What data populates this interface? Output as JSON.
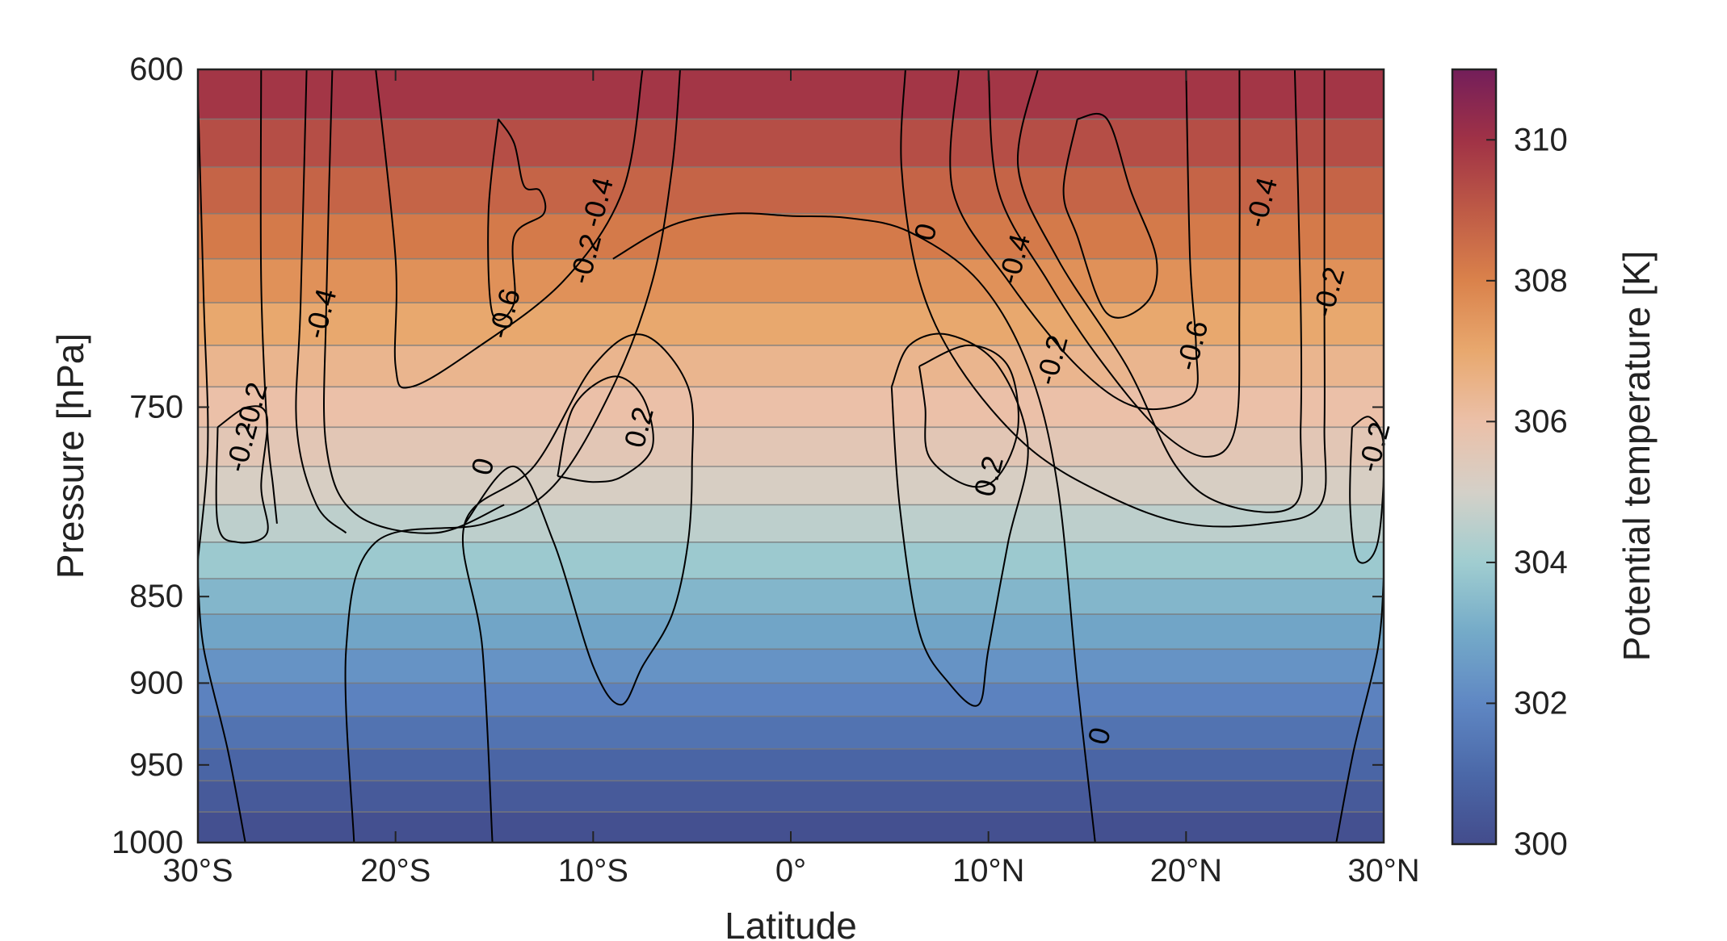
{
  "chart_data": {
    "type": "heatmap",
    "title": "",
    "xlabel": "Latitude",
    "ylabel": "Pressure [hPa]",
    "x_ticks": [
      "30°S",
      "20°S",
      "10°S",
      "0°",
      "10°N",
      "20°N",
      "30°N"
    ],
    "x_tick_values": [
      -30,
      -20,
      -10,
      0,
      10,
      20,
      30
    ],
    "y_ticks": [
      "600",
      "750",
      "850",
      "900",
      "950",
      "1000"
    ],
    "y_tick_values": [
      600,
      750,
      850,
      900,
      950,
      1000
    ],
    "xlim": [
      -30,
      30
    ],
    "ylim": [
      1000,
      600
    ],
    "y_reversed": true,
    "filled_field": {
      "name": "Potential temperature",
      "levels_pressure_hPa": [
        600,
        1000
      ],
      "surface_value_K": 300.0,
      "top_value_K": 310.3,
      "band_pressures_hPa": [
        600,
        620,
        640,
        660,
        680,
        700,
        720,
        740,
        760,
        780,
        800,
        820,
        840,
        860,
        880,
        900,
        920,
        940,
        960,
        980,
        1000
      ],
      "band_values_K": [
        310.2,
        309.6,
        309.0,
        308.5,
        307.9,
        307.3,
        306.7,
        306.2,
        305.8,
        305.4,
        304.9,
        304.2,
        303.6,
        303.1,
        302.6,
        302.1,
        301.6,
        301.1,
        300.7,
        300.3,
        300.0
      ]
    },
    "colorbar": {
      "label": "Potential temperature [K]",
      "ticks": [
        "300",
        "302",
        "304",
        "306",
        "308",
        "310"
      ],
      "tick_values": [
        300,
        302,
        304,
        306,
        308,
        310
      ],
      "range": [
        300,
        311
      ]
    },
    "contour_labels": [
      {
        "text": "-0.4",
        "lat": -23.8,
        "p": 705
      },
      {
        "text": "-0.2",
        "lat": -27.3,
        "p": 750
      },
      {
        "text": "-0.2",
        "lat": -27.8,
        "p": 770
      },
      {
        "text": "-0.6",
        "lat": -14.5,
        "p": 705
      },
      {
        "text": "-0.2",
        "lat": -10.4,
        "p": 680
      },
      {
        "text": "-0.4",
        "lat": -9.8,
        "p": 655
      },
      {
        "text": "0",
        "lat": -15.6,
        "p": 780
      },
      {
        "text": "0.2",
        "lat": -7.7,
        "p": 760
      },
      {
        "text": "0",
        "lat": 6.8,
        "p": 668
      },
      {
        "text": "-0.4",
        "lat": 11.3,
        "p": 680
      },
      {
        "text": "-0.2",
        "lat": 13.2,
        "p": 727
      },
      {
        "text": "0.2",
        "lat": 10.0,
        "p": 785
      },
      {
        "text": "-0.6",
        "lat": 20.3,
        "p": 720
      },
      {
        "text": "-0.4",
        "lat": 23.8,
        "p": 655
      },
      {
        "text": "-0.2",
        "lat": 27.2,
        "p": 695
      },
      {
        "text": "-0.2",
        "lat": 29.5,
        "p": 770
      },
      {
        "text": "0",
        "lat": 15.6,
        "p": 932
      }
    ],
    "contours": {
      "units": "lat_deg, pressure_hPa",
      "lines": [
        [
          [
            -30,
            840
          ],
          [
            -29.7,
            880
          ],
          [
            -28.5,
            940
          ],
          [
            -27.6,
            1000
          ]
        ],
        [
          [
            -30,
            610
          ],
          [
            -29.7,
            700
          ],
          [
            -29.5,
            770
          ],
          [
            -30,
            830
          ]
        ],
        [
          [
            -26.8,
            600
          ],
          [
            -26.8,
            690
          ],
          [
            -26.5,
            760
          ],
          [
            -26.2,
            790
          ],
          [
            -26,
            810
          ]
        ],
        [
          [
            -24.5,
            600
          ],
          [
            -24.8,
            700
          ],
          [
            -25,
            760
          ],
          [
            -24,
            800
          ],
          [
            -22.5,
            815
          ]
        ],
        [
          [
            -23.2,
            600
          ],
          [
            -23.5,
            700
          ],
          [
            -23.5,
            770
          ],
          [
            -22,
            805
          ],
          [
            -18,
            815
          ],
          [
            -14.5,
            800
          ]
        ],
        [
          [
            -21,
            600
          ],
          [
            -20,
            680
          ],
          [
            -20,
            730
          ],
          [
            -19.2,
            740
          ],
          [
            -16,
            722
          ],
          [
            -11.5,
            690
          ],
          [
            -8.5,
            650
          ],
          [
            -7.5,
            600
          ]
        ],
        [
          [
            -22.1,
            1000
          ],
          [
            -22.5,
            880
          ],
          [
            -21,
            820
          ],
          [
            -15.5,
            810
          ],
          [
            -12,
            790
          ],
          [
            -9,
            740
          ],
          [
            -7,
            690
          ],
          [
            -6,
            640
          ],
          [
            -5.6,
            600
          ]
        ],
        [
          [
            -14.8,
            620
          ],
          [
            -15.3,
            660
          ],
          [
            -15.1,
            705
          ],
          [
            -14,
            700
          ],
          [
            -14,
            670
          ],
          [
            -12.5,
            660
          ],
          [
            -12.7,
            650
          ],
          [
            -13.5,
            648
          ],
          [
            -14,
            630
          ],
          [
            -14.8,
            620
          ]
        ],
        [
          [
            -29,
            760
          ],
          [
            -27.5,
            750
          ],
          [
            -26.5,
            755
          ],
          [
            -26.8,
            790
          ],
          [
            -26.5,
            815
          ],
          [
            -28,
            820
          ],
          [
            -29,
            810
          ],
          [
            -29,
            760
          ]
        ],
        [
          [
            -15.1,
            1000
          ],
          [
            -15.6,
            880
          ],
          [
            -16.5,
            810
          ],
          [
            -13,
            780
          ],
          [
            -10,
            730
          ],
          [
            -7.5,
            715
          ],
          [
            -5.2,
            740
          ],
          [
            -5,
            780
          ],
          [
            -5.2,
            820
          ],
          [
            -6,
            860
          ],
          [
            -7.5,
            890
          ],
          [
            -8.6,
            913
          ],
          [
            -10,
            890
          ],
          [
            -12,
            820
          ],
          [
            -14,
            780
          ],
          [
            -16.5,
            810
          ]
        ],
        [
          [
            -11.8,
            785
          ],
          [
            -11,
            750
          ],
          [
            -9,
            735
          ],
          [
            -7.5,
            745
          ],
          [
            -7,
            770
          ],
          [
            -8.5,
            785
          ],
          [
            -10,
            788
          ],
          [
            -11.8,
            785
          ]
        ],
        [
          [
            -9,
            680
          ],
          [
            -6,
            665
          ],
          [
            -3,
            660
          ],
          [
            0,
            661
          ],
          [
            3,
            662
          ],
          [
            6,
            668
          ],
          [
            9.5,
            690
          ],
          [
            12,
            730
          ],
          [
            13.5,
            790
          ],
          [
            14.5,
            900
          ],
          [
            15.4,
            1000
          ]
        ],
        [
          [
            5.8,
            600
          ],
          [
            5.6,
            640
          ],
          [
            6.5,
            690
          ],
          [
            8.5,
            730
          ],
          [
            12,
            770
          ],
          [
            16,
            795
          ],
          [
            20,
            810
          ],
          [
            24,
            810
          ],
          [
            26.8,
            800
          ],
          [
            27,
            760
          ],
          [
            27,
            700
          ],
          [
            27,
            600
          ]
        ],
        [
          [
            8.5,
            600
          ],
          [
            8.2,
            650
          ],
          [
            11,
            690
          ],
          [
            14.5,
            730
          ],
          [
            17.5,
            750
          ],
          [
            20.3,
            745
          ],
          [
            20.5,
            720
          ],
          [
            20.2,
            680
          ],
          [
            20,
            600
          ]
        ],
        [
          [
            10,
            600
          ],
          [
            10.5,
            650
          ],
          [
            13,
            690
          ],
          [
            15.5,
            725
          ],
          [
            18.5,
            760
          ],
          [
            21,
            775
          ],
          [
            22.5,
            760
          ],
          [
            22.7,
            700
          ],
          [
            22.7,
            600
          ]
        ],
        [
          [
            12.5,
            600
          ],
          [
            11.5,
            640
          ],
          [
            13.5,
            680
          ],
          [
            17,
            730
          ],
          [
            19.5,
            780
          ],
          [
            22,
            800
          ],
          [
            25.5,
            800
          ],
          [
            25.8,
            760
          ],
          [
            25.8,
            700
          ],
          [
            25.5,
            600
          ]
        ],
        [
          [
            6.5,
            730
          ],
          [
            9,
            720
          ],
          [
            11,
            730
          ],
          [
            11.5,
            760
          ],
          [
            10.5,
            785
          ],
          [
            9,
            790
          ],
          [
            7,
            775
          ],
          [
            6.8,
            750
          ],
          [
            6.5,
            730
          ]
        ],
        [
          [
            5.1,
            740
          ],
          [
            6,
            720
          ],
          [
            8,
            715
          ],
          [
            10.5,
            730
          ],
          [
            12,
            770
          ],
          [
            11,
            820
          ],
          [
            10,
            880
          ],
          [
            9.5,
            913
          ],
          [
            8,
            900
          ],
          [
            6.5,
            870
          ],
          [
            5.5,
            800
          ],
          [
            5.1,
            740
          ]
        ],
        [
          [
            14.5,
            620
          ],
          [
            13.8,
            650
          ],
          [
            14.5,
            670
          ],
          [
            16,
            705
          ],
          [
            18,
            700
          ],
          [
            18.5,
            680
          ],
          [
            17.2,
            650
          ],
          [
            16,
            620
          ],
          [
            14.5,
            620
          ]
        ],
        [
          [
            27.6,
            1000
          ],
          [
            28.5,
            940
          ],
          [
            29.7,
            880
          ],
          [
            30,
            840
          ]
        ],
        [
          [
            28.4,
            760
          ],
          [
            29.3,
            755
          ],
          [
            30,
            770
          ],
          [
            29.7,
            820
          ],
          [
            28.7,
            830
          ],
          [
            28.3,
            800
          ],
          [
            28.4,
            760
          ]
        ]
      ]
    }
  }
}
